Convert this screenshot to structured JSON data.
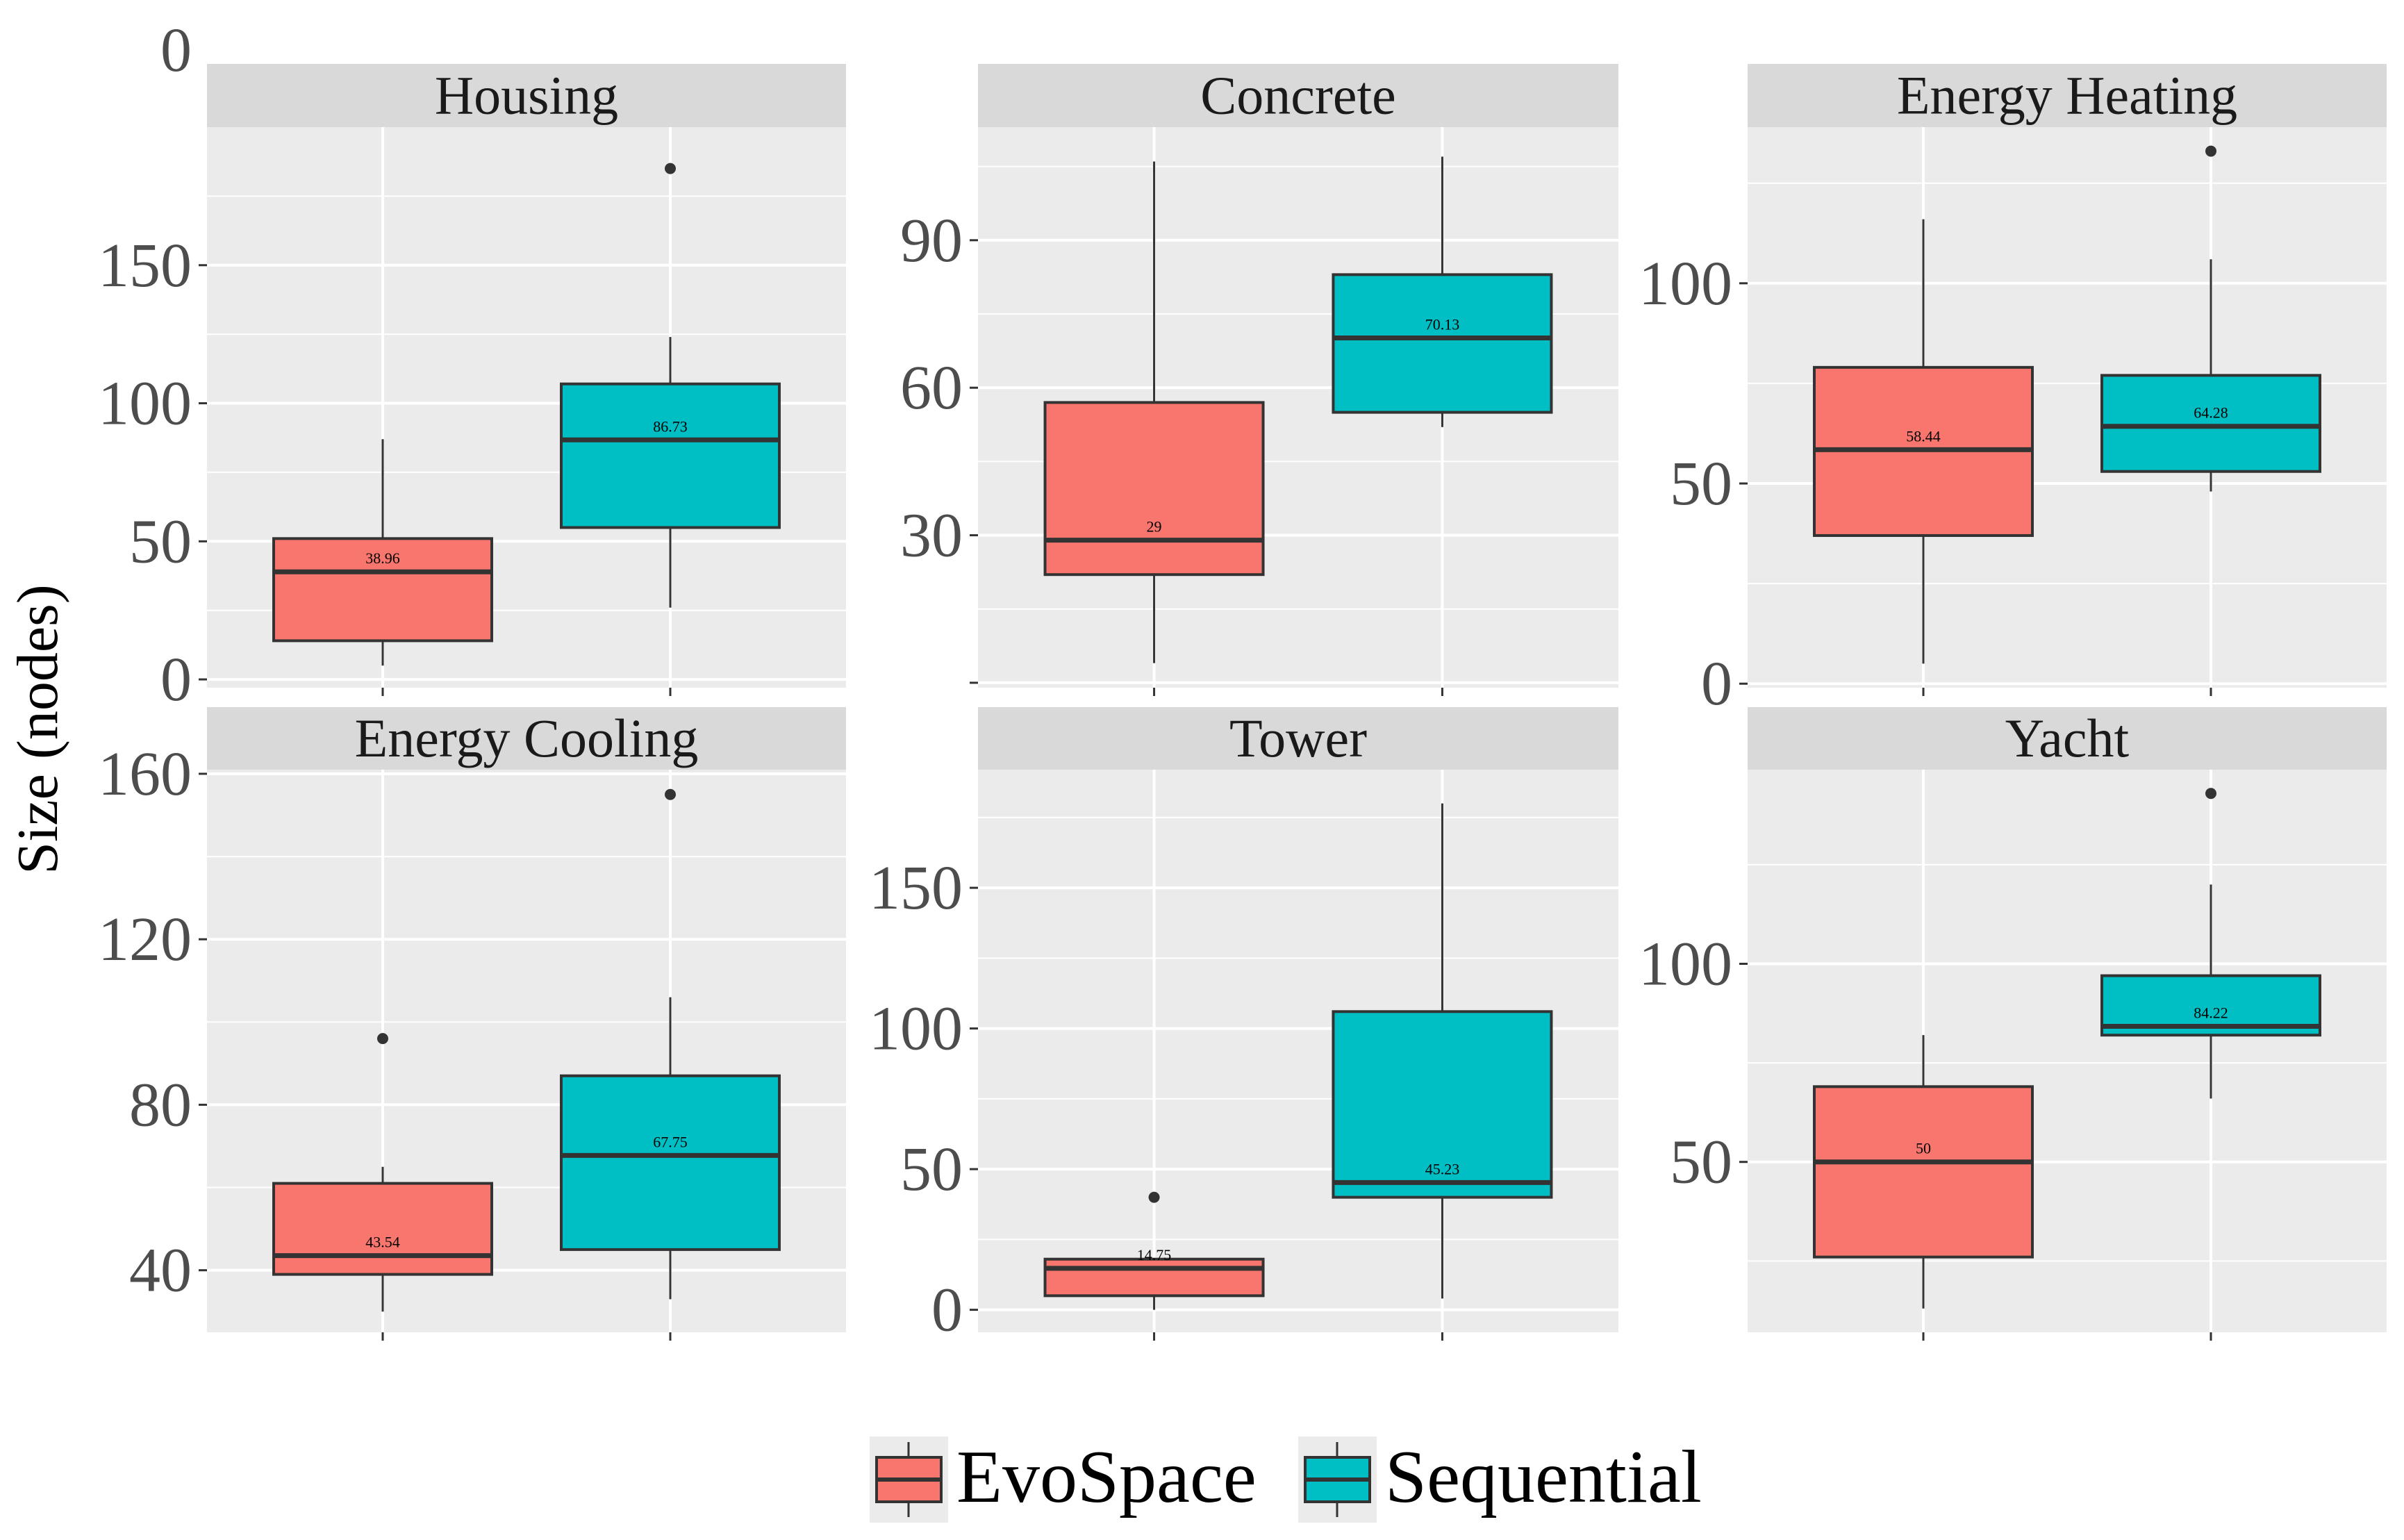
{
  "figure": {
    "ylabel": "Size (nodes)"
  },
  "legend": {
    "position": "bottom",
    "items": [
      {
        "name": "EvoSpace",
        "color": "#F8766D"
      },
      {
        "name": "Sequential",
        "color": "#00BFC4"
      }
    ]
  },
  "colors": {
    "panel_bg": "#EBEBEB",
    "strip_bg": "#D9D9D9",
    "grid": "#FFFFFF",
    "tick_text": "#4D4D4D",
    "box_border": "#333333",
    "evospace": "#F8766D",
    "sequential": "#00BFC4"
  },
  "chart_data": [
    {
      "type": "boxplot",
      "title": "Housing",
      "ylim": [
        -3,
        200
      ],
      "y_ticks": [
        0,
        50,
        100,
        150
      ],
      "extra_top_label": "0",
      "series": [
        {
          "name": "EvoSpace",
          "q1": 14,
          "median": 38.96,
          "q3": 51,
          "whisker_low": 5,
          "whisker_high": 87,
          "outliers": [],
          "median_label": "38.96"
        },
        {
          "name": "Sequential",
          "q1": 55,
          "median": 86.73,
          "q3": 107,
          "whisker_low": 26,
          "whisker_high": 124,
          "outliers": [
            185
          ],
          "median_label": "86.73"
        }
      ]
    },
    {
      "type": "boxplot",
      "title": "Concrete",
      "ylim": [
        -1,
        113
      ],
      "y_ticks": [
        0,
        30,
        60,
        90
      ],
      "y_tick_labels": [
        "",
        "30",
        "60",
        "90"
      ],
      "series": [
        {
          "name": "EvoSpace",
          "q1": 22,
          "median": 29,
          "q3": 57,
          "whisker_low": 4,
          "whisker_high": 106,
          "outliers": [],
          "median_label": "29"
        },
        {
          "name": "Sequential",
          "q1": 55,
          "median": 70.13,
          "q3": 83,
          "whisker_low": 52,
          "whisker_high": 107,
          "outliers": [],
          "median_label": "70.13"
        }
      ]
    },
    {
      "type": "boxplot",
      "title": "Energy Heating",
      "ylim": [
        -1,
        139
      ],
      "y_ticks": [
        0,
        50,
        100
      ],
      "series": [
        {
          "name": "EvoSpace",
          "q1": 37,
          "median": 58.44,
          "q3": 79,
          "whisker_low": 5,
          "whisker_high": 116,
          "outliers": [],
          "median_label": "58.44"
        },
        {
          "name": "Sequential",
          "q1": 53,
          "median": 64.28,
          "q3": 77,
          "whisker_low": 48,
          "whisker_high": 106,
          "outliers": [
            133
          ],
          "median_label": "64.28"
        }
      ]
    },
    {
      "type": "boxplot",
      "title": "Energy Cooling",
      "ylim": [
        25,
        161
      ],
      "y_ticks": [
        40,
        80,
        120,
        160
      ],
      "series": [
        {
          "name": "EvoSpace",
          "q1": 39,
          "median": 43.54,
          "q3": 61,
          "whisker_low": 30,
          "whisker_high": 65,
          "outliers": [
            96
          ],
          "median_label": "43.54"
        },
        {
          "name": "Sequential",
          "q1": 45,
          "median": 67.75,
          "q3": 87,
          "whisker_low": 33,
          "whisker_high": 106,
          "outliers": [
            155
          ],
          "median_label": "67.75"
        }
      ]
    },
    {
      "type": "boxplot",
      "title": "Tower",
      "ylim": [
        -8,
        192
      ],
      "y_ticks": [
        0,
        50,
        100,
        150
      ],
      "series": [
        {
          "name": "EvoSpace",
          "q1": 5,
          "median": 14.75,
          "q3": 18,
          "whisker_low": 0,
          "whisker_high": 18,
          "outliers": [
            40
          ],
          "median_label": "14.75"
        },
        {
          "name": "Sequential",
          "q1": 40,
          "median": 45.23,
          "q3": 106,
          "whisker_low": 4,
          "whisker_high": 180,
          "outliers": [],
          "median_label": "45.23"
        }
      ]
    },
    {
      "type": "boxplot",
      "title": "Yacht",
      "ylim": [
        7,
        149
      ],
      "y_ticks": [
        50,
        100
      ],
      "series": [
        {
          "name": "EvoSpace",
          "q1": 26,
          "median": 50,
          "q3": 69,
          "whisker_low": 13,
          "whisker_high": 82,
          "outliers": [],
          "median_label": "50"
        },
        {
          "name": "Sequential",
          "q1": 82,
          "median": 84.22,
          "q3": 97,
          "whisker_low": 66,
          "whisker_high": 120,
          "outliers": [
            143
          ],
          "median_label": "84.22"
        }
      ]
    }
  ]
}
